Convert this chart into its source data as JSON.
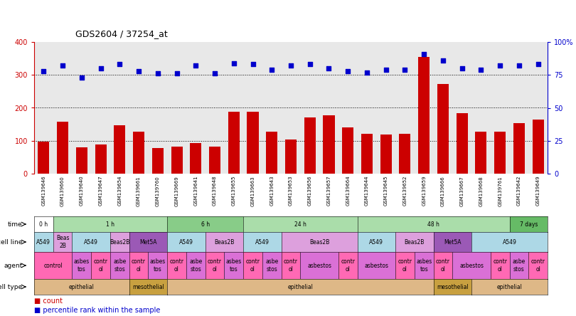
{
  "title": "GDS2604 / 37254_at",
  "samples": [
    "GSM139646",
    "GSM139660",
    "GSM139640",
    "GSM139647",
    "GSM139654",
    "GSM139661",
    "GSM139760",
    "GSM139669",
    "GSM139641",
    "GSM139648",
    "GSM139655",
    "GSM139663",
    "GSM139643",
    "GSM139653",
    "GSM139656",
    "GSM139657",
    "GSM139664",
    "GSM139644",
    "GSM139645",
    "GSM139652",
    "GSM139659",
    "GSM139666",
    "GSM139667",
    "GSM139668",
    "GSM139761",
    "GSM139642",
    "GSM139649"
  ],
  "counts": [
    97,
    158,
    80,
    88,
    147,
    128,
    77,
    82,
    92,
    82,
    188,
    188,
    128,
    103,
    170,
    178,
    140,
    122,
    118,
    120,
    355,
    273,
    183,
    128,
    128,
    153,
    165
  ],
  "percentile": [
    78,
    82,
    73,
    80,
    83,
    78,
    76,
    76,
    82,
    76,
    84,
    83,
    79,
    82,
    83,
    80,
    78,
    77,
    79,
    79,
    91,
    86,
    80,
    79,
    82,
    82,
    83
  ],
  "time_groups": [
    {
      "label": "0 h",
      "start": 0,
      "end": 1,
      "color": "#ffffff"
    },
    {
      "label": "1 h",
      "start": 1,
      "end": 7,
      "color": "#aaddaa"
    },
    {
      "label": "6 h",
      "start": 7,
      "end": 11,
      "color": "#88cc88"
    },
    {
      "label": "24 h",
      "start": 11,
      "end": 17,
      "color": "#aaddaa"
    },
    {
      "label": "48 h",
      "start": 17,
      "end": 25,
      "color": "#aaddaa"
    },
    {
      "label": "7 days",
      "start": 25,
      "end": 27,
      "color": "#66bb66"
    }
  ],
  "cell_line_groups": [
    {
      "label": "A549",
      "start": 0,
      "end": 1,
      "color": "#add8e6"
    },
    {
      "label": "Beas\n2B",
      "start": 1,
      "end": 2,
      "color": "#dda0dd"
    },
    {
      "label": "A549",
      "start": 2,
      "end": 4,
      "color": "#add8e6"
    },
    {
      "label": "Beas2B",
      "start": 4,
      "end": 5,
      "color": "#dda0dd"
    },
    {
      "label": "Met5A",
      "start": 5,
      "end": 7,
      "color": "#9b59b6"
    },
    {
      "label": "A549",
      "start": 7,
      "end": 9,
      "color": "#add8e6"
    },
    {
      "label": "Beas2B",
      "start": 9,
      "end": 11,
      "color": "#dda0dd"
    },
    {
      "label": "A549",
      "start": 11,
      "end": 13,
      "color": "#add8e6"
    },
    {
      "label": "Beas2B",
      "start": 13,
      "end": 17,
      "color": "#dda0dd"
    },
    {
      "label": "A549",
      "start": 17,
      "end": 19,
      "color": "#add8e6"
    },
    {
      "label": "Beas2B",
      "start": 19,
      "end": 21,
      "color": "#dda0dd"
    },
    {
      "label": "Met5A",
      "start": 21,
      "end": 23,
      "color": "#9b59b6"
    },
    {
      "label": "A549",
      "start": 23,
      "end": 27,
      "color": "#add8e6"
    }
  ],
  "agent_groups": [
    {
      "label": "control",
      "start": 0,
      "end": 2,
      "color": "#ff69b4"
    },
    {
      "label": "asbes\ntos",
      "start": 2,
      "end": 3,
      "color": "#da70d6"
    },
    {
      "label": "contr\nol",
      "start": 3,
      "end": 4,
      "color": "#ff69b4"
    },
    {
      "label": "asbe\nstos",
      "start": 4,
      "end": 5,
      "color": "#da70d6"
    },
    {
      "label": "contr\nol",
      "start": 5,
      "end": 6,
      "color": "#ff69b4"
    },
    {
      "label": "asbes\ntos",
      "start": 6,
      "end": 7,
      "color": "#da70d6"
    },
    {
      "label": "contr\nol",
      "start": 7,
      "end": 8,
      "color": "#ff69b4"
    },
    {
      "label": "asbe\nstos",
      "start": 8,
      "end": 9,
      "color": "#da70d6"
    },
    {
      "label": "contr\nol",
      "start": 9,
      "end": 10,
      "color": "#ff69b4"
    },
    {
      "label": "asbes\ntos",
      "start": 10,
      "end": 11,
      "color": "#da70d6"
    },
    {
      "label": "contr\nol",
      "start": 11,
      "end": 12,
      "color": "#ff69b4"
    },
    {
      "label": "asbe\nstos",
      "start": 12,
      "end": 13,
      "color": "#da70d6"
    },
    {
      "label": "contr\nol",
      "start": 13,
      "end": 14,
      "color": "#ff69b4"
    },
    {
      "label": "asbestos",
      "start": 14,
      "end": 16,
      "color": "#da70d6"
    },
    {
      "label": "contr\nol",
      "start": 16,
      "end": 17,
      "color": "#ff69b4"
    },
    {
      "label": "asbestos",
      "start": 17,
      "end": 19,
      "color": "#da70d6"
    },
    {
      "label": "contr\nol",
      "start": 19,
      "end": 20,
      "color": "#ff69b4"
    },
    {
      "label": "asbes\ntos",
      "start": 20,
      "end": 21,
      "color": "#da70d6"
    },
    {
      "label": "contr\nol",
      "start": 21,
      "end": 22,
      "color": "#ff69b4"
    },
    {
      "label": "asbestos",
      "start": 22,
      "end": 24,
      "color": "#da70d6"
    },
    {
      "label": "contr\nol",
      "start": 24,
      "end": 25,
      "color": "#ff69b4"
    },
    {
      "label": "asbe\nstos",
      "start": 25,
      "end": 26,
      "color": "#da70d6"
    },
    {
      "label": "contr\nol",
      "start": 26,
      "end": 27,
      "color": "#ff69b4"
    }
  ],
  "cell_type_groups": [
    {
      "label": "epithelial",
      "start": 0,
      "end": 5,
      "color": "#deb887"
    },
    {
      "label": "mesothelial",
      "start": 5,
      "end": 7,
      "color": "#c8a040"
    },
    {
      "label": "epithelial",
      "start": 7,
      "end": 21,
      "color": "#deb887"
    },
    {
      "label": "mesothelial",
      "start": 21,
      "end": 23,
      "color": "#c8a040"
    },
    {
      "label": "epithelial",
      "start": 23,
      "end": 27,
      "color": "#deb887"
    }
  ],
  "bar_color": "#cc0000",
  "dot_color": "#0000cc",
  "left_axis_color": "#cc0000",
  "right_axis_color": "#0000cc",
  "chart_bg_color": "#e8e8e8",
  "ylim_left": [
    0,
    400
  ],
  "ylim_right": [
    0,
    100
  ],
  "yticks_left": [
    0,
    100,
    200,
    300,
    400
  ],
  "yticks_right": [
    0,
    25,
    50,
    75,
    100
  ],
  "ytick_labels_right": [
    "0",
    "25",
    "50",
    "75",
    "100%"
  ]
}
